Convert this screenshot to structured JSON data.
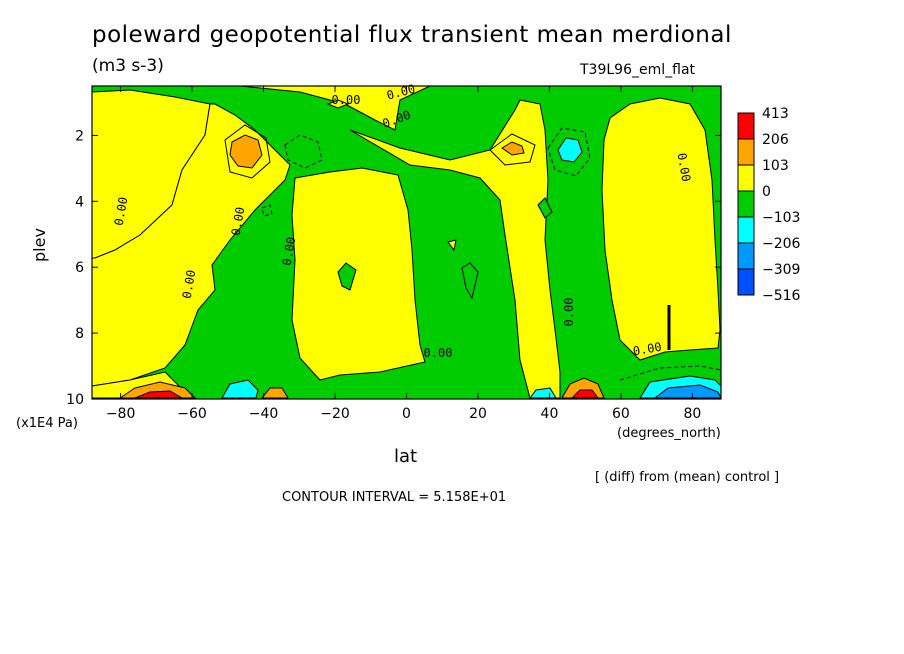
{
  "chart_data": {
    "type": "heatmap",
    "title": "poleward geopotential flux transient mean merdional",
    "units": "(m3 s-3)",
    "run_label": "T39L96_eml_flat",
    "xlabel": "lat",
    "x_unit": "(degrees_north)",
    "ylabel": "plev",
    "y_unit": "(x1E4 Pa)",
    "xlim": [
      -88,
      88
    ],
    "ylim": [
      10,
      0.5
    ],
    "x_ticks": [
      "-80",
      "-60",
      "-40",
      "-20",
      "0",
      "20",
      "40",
      "60",
      "80"
    ],
    "y_ticks": [
      "2",
      "4",
      "6",
      "8",
      "10"
    ],
    "colorbar_levels": [
      "413",
      "206",
      "103",
      "0",
      "-103",
      "-206",
      "-309",
      "-516"
    ],
    "colorbar_colors": [
      "#ff0000",
      "#ffa500",
      "#ffff00",
      "#00cc00",
      "#00ffff",
      "#0099ff",
      "#0050ff"
    ],
    "contour_labels": [
      "0.00",
      "0.00",
      "0.00",
      "0.00",
      "0.00",
      "0.00",
      "0.00",
      "0.00",
      "0.00",
      "0.00",
      "0.00"
    ],
    "contour_interval": "CONTOUR INTERVAL = 5.158E+01",
    "note": "[ (diff) from (mean) control ]"
  }
}
